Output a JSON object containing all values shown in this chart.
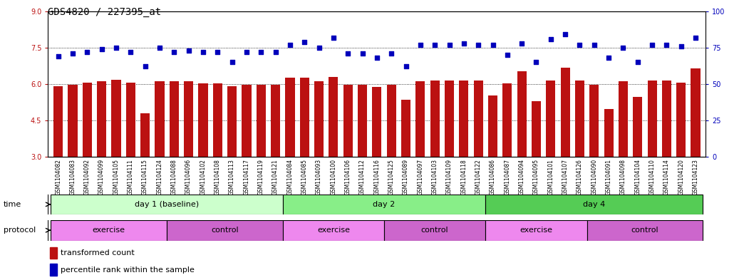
{
  "title": "GDS4820 / 227395_at",
  "samples": [
    "GSM1104082",
    "GSM1104083",
    "GSM1104092",
    "GSM1104099",
    "GSM1104105",
    "GSM1104111",
    "GSM1104115",
    "GSM1104124",
    "GSM1104088",
    "GSM1104096",
    "GSM1104102",
    "GSM1104108",
    "GSM1104113",
    "GSM1104117",
    "GSM1104119",
    "GSM1104121",
    "GSM1104084",
    "GSM1104085",
    "GSM1104093",
    "GSM1104100",
    "GSM1104106",
    "GSM1104112",
    "GSM1104116",
    "GSM1104125",
    "GSM1104089",
    "GSM1104097",
    "GSM1104103",
    "GSM1104109",
    "GSM1104118",
    "GSM1104122",
    "GSM1104086",
    "GSM1104087",
    "GSM1104094",
    "GSM1104095",
    "GSM1104101",
    "GSM1104107",
    "GSM1104126",
    "GSM1104090",
    "GSM1104091",
    "GSM1104098",
    "GSM1104104",
    "GSM1104110",
    "GSM1104114",
    "GSM1104120",
    "GSM1104123"
  ],
  "bar_values": [
    5.9,
    5.98,
    6.05,
    6.12,
    6.17,
    6.05,
    4.78,
    6.12,
    6.12,
    6.12,
    6.02,
    6.02,
    5.9,
    5.98,
    5.98,
    5.98,
    6.25,
    6.25,
    6.1,
    6.28,
    5.98,
    5.98,
    5.88,
    5.98,
    5.35,
    6.12,
    6.15,
    6.15,
    6.15,
    6.15,
    5.52,
    6.02,
    6.52,
    5.28,
    6.15,
    6.68,
    6.15,
    5.98,
    4.98,
    6.12,
    5.48,
    6.15,
    6.15,
    6.05,
    6.65
  ],
  "dot_values": [
    69,
    71,
    72,
    74,
    75,
    72,
    62,
    75,
    72,
    73,
    72,
    72,
    65,
    72,
    72,
    72,
    77,
    79,
    75,
    82,
    71,
    71,
    68,
    71,
    62,
    77,
    77,
    77,
    78,
    77,
    77,
    70,
    78,
    65,
    81,
    84,
    77,
    77,
    68,
    75,
    65,
    77,
    77,
    76,
    82
  ],
  "ylim_left": [
    3,
    9
  ],
  "ylim_right": [
    0,
    100
  ],
  "yticks_left": [
    3,
    4.5,
    6,
    7.5,
    9
  ],
  "yticks_right": [
    0,
    25,
    50,
    75,
    100
  ],
  "bar_color": "#bb1111",
  "dot_color": "#0000bb",
  "bar_bottom": 3,
  "time_groups": [
    {
      "label": "day 1 (baseline)",
      "start": 0,
      "end": 15,
      "color": "#ccffcc"
    },
    {
      "label": "day 2",
      "start": 16,
      "end": 29,
      "color": "#88ee88"
    },
    {
      "label": "day 4",
      "start": 30,
      "end": 44,
      "color": "#55cc55"
    }
  ],
  "protocol_groups": [
    {
      "label": "exercise",
      "start": 0,
      "end": 7,
      "color": "#ee88ee"
    },
    {
      "label": "control",
      "start": 8,
      "end": 15,
      "color": "#cc66cc"
    },
    {
      "label": "exercise",
      "start": 16,
      "end": 22,
      "color": "#ee88ee"
    },
    {
      "label": "control",
      "start": 23,
      "end": 29,
      "color": "#cc66cc"
    },
    {
      "label": "exercise",
      "start": 30,
      "end": 36,
      "color": "#ee88ee"
    },
    {
      "label": "control",
      "start": 37,
      "end": 44,
      "color": "#cc66cc"
    }
  ],
  "legend_bar_label": "transformed count",
  "legend_dot_label": "percentile rank within the sample",
  "time_label": "time",
  "protocol_label": "protocol",
  "title_fontsize": 10,
  "tick_fontsize": 7,
  "label_fontsize": 8,
  "bar_fontsize": 5.5,
  "strip_fontsize": 8
}
